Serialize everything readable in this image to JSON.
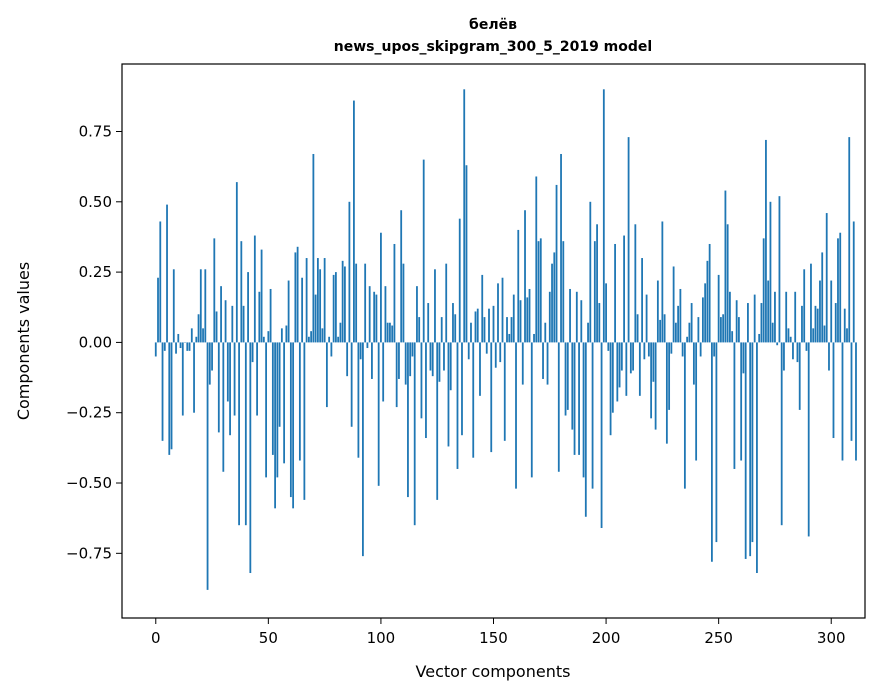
{
  "chart_data": {
    "type": "bar",
    "title": "белёв",
    "subtitle": "news_upos_skipgram_300_5_2019 model",
    "xlabel": "Vector components",
    "ylabel": "Components values",
    "xlim": [
      -15,
      315
    ],
    "ylim": [
      -0.98,
      0.99
    ],
    "xticks": [
      0,
      50,
      100,
      150,
      200,
      250,
      300
    ],
    "xtick_labels": [
      "0",
      "50",
      "100",
      "150",
      "200",
      "250",
      "300"
    ],
    "yticks": [
      -0.75,
      -0.5,
      -0.25,
      0.0,
      0.25,
      0.5,
      0.75
    ],
    "ytick_labels": [
      "−0.75",
      "−0.50",
      "−0.25",
      "0.00",
      "0.25",
      "0.50",
      "0.75"
    ],
    "grid": false,
    "color": "#1f77b4",
    "values": [
      -0.05,
      0.23,
      0.43,
      -0.35,
      -0.03,
      0.49,
      -0.4,
      -0.38,
      0.26,
      -0.04,
      0.03,
      -0.02,
      -0.26,
      0.0,
      -0.03,
      -0.03,
      0.05,
      -0.25,
      0.02,
      0.1,
      0.26,
      0.05,
      0.26,
      -0.88,
      -0.15,
      -0.1,
      0.37,
      0.11,
      -0.32,
      0.2,
      -0.46,
      0.15,
      -0.21,
      -0.33,
      0.13,
      -0.26,
      0.57,
      -0.65,
      0.36,
      0.13,
      -0.65,
      0.25,
      -0.82,
      -0.07,
      0.38,
      -0.26,
      0.18,
      0.33,
      0.02,
      -0.48,
      0.04,
      0.19,
      -0.4,
      -0.59,
      -0.48,
      -0.3,
      0.05,
      -0.43,
      0.06,
      0.22,
      -0.55,
      -0.59,
      0.32,
      0.34,
      -0.42,
      0.23,
      -0.56,
      0.3,
      0.02,
      0.04,
      0.67,
      0.17,
      0.3,
      0.26,
      0.05,
      0.3,
      -0.23,
      0.02,
      -0.05,
      0.24,
      0.25,
      0.02,
      0.07,
      0.29,
      0.27,
      -0.12,
      0.5,
      -0.3,
      0.86,
      0.28,
      -0.41,
      -0.06,
      -0.76,
      0.28,
      -0.02,
      0.2,
      -0.13,
      0.18,
      0.17,
      -0.51,
      0.39,
      -0.21,
      0.2,
      0.07,
      0.07,
      0.06,
      0.35,
      -0.23,
      -0.13,
      0.47,
      0.28,
      -0.15,
      -0.55,
      -0.12,
      -0.05,
      -0.65,
      0.2,
      0.09,
      -0.27,
      0.65,
      -0.34,
      0.14,
      -0.1,
      -0.12,
      0.26,
      -0.56,
      -0.14,
      0.09,
      -0.1,
      0.28,
      -0.37,
      -0.17,
      0.14,
      0.1,
      -0.45,
      0.44,
      -0.33,
      0.9,
      0.63,
      -0.06,
      0.07,
      -0.41,
      0.11,
      0.12,
      -0.19,
      0.24,
      0.09,
      -0.04,
      0.12,
      -0.39,
      0.13,
      -0.09,
      0.21,
      -0.07,
      0.23,
      -0.35,
      0.09,
      0.03,
      0.09,
      0.17,
      -0.52,
      0.4,
      0.15,
      -0.15,
      0.47,
      0.16,
      0.19,
      -0.48,
      0.03,
      0.59,
      0.36,
      0.37,
      -0.13,
      0.07,
      -0.15,
      0.18,
      0.28,
      0.32,
      0.56,
      -0.46,
      0.67,
      0.36,
      -0.26,
      -0.24,
      0.19,
      -0.31,
      -0.4,
      0.18,
      -0.4,
      0.15,
      -0.48,
      -0.62,
      0.07,
      0.5,
      -0.52,
      0.36,
      0.42,
      0.14,
      -0.66,
      0.9,
      0.21,
      -0.03,
      -0.33,
      -0.25,
      0.35,
      -0.21,
      -0.16,
      -0.1,
      0.38,
      -0.19,
      0.73,
      -0.11,
      -0.1,
      0.42,
      0.1,
      -0.19,
      0.3,
      -0.06,
      0.17,
      -0.05,
      -0.27,
      -0.14,
      -0.31,
      0.22,
      0.08,
      0.43,
      0.1,
      -0.36,
      -0.24,
      -0.04,
      0.27,
      0.07,
      0.13,
      0.19,
      -0.05,
      -0.52,
      0.02,
      0.07,
      0.14,
      -0.15,
      -0.42,
      0.09,
      -0.05,
      0.16,
      0.21,
      0.29,
      0.35,
      -0.78,
      -0.05,
      -0.71,
      0.24,
      0.09,
      0.1,
      0.54,
      0.42,
      0.18,
      0.04,
      -0.45,
      0.15,
      0.09,
      -0.42,
      -0.11,
      -0.77,
      0.14,
      -0.76,
      -0.71,
      0.17,
      -0.82,
      0.03,
      0.14,
      0.37,
      0.72,
      0.22,
      0.5,
      0.07,
      0.18,
      -0.01,
      0.52,
      -0.65,
      -0.1,
      0.18,
      0.05,
      0.02,
      -0.06,
      0.18,
      -0.07,
      -0.24,
      0.13,
      0.26,
      -0.03,
      -0.69,
      0.28,
      0.05,
      0.13,
      0.12,
      0.22,
      0.32,
      0.06,
      0.46,
      -0.1,
      0.22,
      -0.34,
      0.14,
      0.37,
      0.39,
      -0.42,
      0.12,
      0.05,
      0.73,
      -0.35,
      0.43,
      -0.42
    ]
  }
}
